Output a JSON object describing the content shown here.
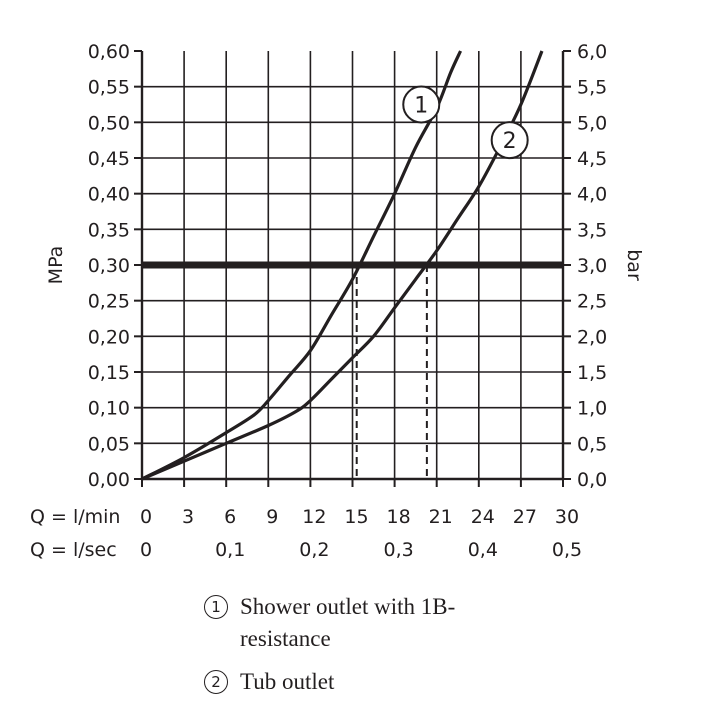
{
  "chart_data": {
    "type": "line",
    "ylabel_left": "MPa",
    "ylabel_right": "bar",
    "x_row_labels": [
      "Q = l/min",
      "Q = l/sec"
    ],
    "x_ticks_lmin": [
      "0",
      "3",
      "6",
      "9",
      "12",
      "15",
      "18",
      "21",
      "24",
      "27",
      "30"
    ],
    "x_ticks_lsec": [
      "0",
      "0,1",
      "0,2",
      "0,3",
      "0,4",
      "0,5"
    ],
    "y_ticks_mpa": [
      "0,00",
      "0,05",
      "0,10",
      "0,15",
      "0,20",
      "0,25",
      "0,30",
      "0,35",
      "0,40",
      "0,45",
      "0,50",
      "0,55",
      "0,60"
    ],
    "y_ticks_bar": [
      "0,0",
      "0,5",
      "1,0",
      "1,5",
      "2,0",
      "2,5",
      "3,0",
      "3,5",
      "4,0",
      "4,5",
      "5,0",
      "5,5",
      "6,0"
    ],
    "xlim": [
      0,
      30
    ],
    "ylim": [
      0,
      0.6
    ],
    "grid": true,
    "reference_line": {
      "y": 0.3
    },
    "intersections": [
      {
        "series": "1",
        "x": 15.3,
        "y": 0.3
      },
      {
        "series": "2",
        "x": 20.3,
        "y": 0.3
      }
    ],
    "series": [
      {
        "marker": "1",
        "x": [
          0,
          3,
          6,
          8,
          9,
          10.5,
          12,
          13.5,
          15,
          16.5,
          18,
          19.5,
          21,
          22,
          22.7
        ],
        "y": [
          0,
          0.03,
          0.065,
          0.09,
          0.11,
          0.145,
          0.18,
          0.23,
          0.28,
          0.34,
          0.4,
          0.465,
          0.52,
          0.57,
          0.6
        ]
      },
      {
        "marker": "2",
        "x": [
          0,
          3,
          6,
          9,
          11,
          12,
          13.5,
          15,
          16.5,
          18,
          19.5,
          21,
          22.5,
          24,
          25.5,
          27,
          28.5
        ],
        "y": [
          0,
          0.025,
          0.05,
          0.075,
          0.095,
          0.11,
          0.14,
          0.17,
          0.2,
          0.24,
          0.28,
          0.32,
          0.365,
          0.41,
          0.465,
          0.525,
          0.6
        ]
      }
    ]
  },
  "legend": [
    {
      "marker": "1",
      "label": "Shower outlet with 1B-resistance"
    },
    {
      "marker": "2",
      "label": "Tub outlet"
    }
  ]
}
